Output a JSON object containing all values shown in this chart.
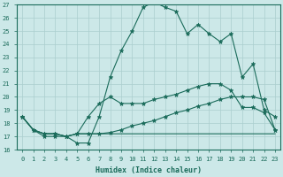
{
  "xlabel": "Humidex (Indice chaleur)",
  "bg_color": "#cce8e8",
  "grid_color": "#aacece",
  "line_color": "#1a6b5a",
  "xlim": [
    -0.5,
    23.5
  ],
  "ylim": [
    16,
    27
  ],
  "xticks": [
    0,
    1,
    2,
    3,
    4,
    5,
    6,
    7,
    8,
    9,
    10,
    11,
    12,
    13,
    14,
    15,
    16,
    17,
    18,
    19,
    20,
    21,
    22,
    23
  ],
  "yticks": [
    16,
    17,
    18,
    19,
    20,
    21,
    22,
    23,
    24,
    25,
    26,
    27
  ],
  "series1_x": [
    0,
    1,
    2,
    3,
    4,
    5,
    6,
    7,
    8,
    9,
    10,
    11,
    12,
    13,
    14,
    15,
    16,
    17,
    18,
    19,
    20,
    21,
    22,
    23
  ],
  "series1_y": [
    18.5,
    17.5,
    17.0,
    17.0,
    17.0,
    16.5,
    16.5,
    18.5,
    21.5,
    23.5,
    25.0,
    26.8,
    27.2,
    26.8,
    26.5,
    24.8,
    25.5,
    24.8,
    24.2,
    24.8,
    21.5,
    22.5,
    19.0,
    18.5
  ],
  "series2_x": [
    0,
    1,
    2,
    3,
    4,
    5,
    6,
    7,
    8,
    9,
    10,
    11,
    12,
    13,
    14,
    15,
    16,
    17,
    18,
    19,
    20,
    21,
    22,
    23
  ],
  "series2_y": [
    18.5,
    17.5,
    17.2,
    17.2,
    17.0,
    17.2,
    18.5,
    19.5,
    20.0,
    19.5,
    19.5,
    19.5,
    19.8,
    20.0,
    20.2,
    20.5,
    20.8,
    21.0,
    21.0,
    20.5,
    19.2,
    19.2,
    18.8,
    17.5
  ],
  "series3_x": [
    0,
    1,
    2,
    3,
    4,
    5,
    6,
    7,
    8,
    9,
    10,
    11,
    12,
    13,
    14,
    15,
    16,
    17,
    18,
    19,
    20,
    21,
    22,
    23
  ],
  "series3_y": [
    18.5,
    17.5,
    17.2,
    17.2,
    17.0,
    17.2,
    17.2,
    17.2,
    17.3,
    17.5,
    17.8,
    18.0,
    18.2,
    18.5,
    18.8,
    19.0,
    19.3,
    19.5,
    19.8,
    20.0,
    20.0,
    20.0,
    19.8,
    17.5
  ],
  "series4_x": [
    0,
    1,
    2,
    3,
    4,
    5,
    6,
    7,
    8,
    9,
    10,
    11,
    12,
    13,
    14,
    15,
    16,
    17,
    18,
    19,
    20,
    21,
    22,
    23
  ],
  "series4_y": [
    18.5,
    17.5,
    17.2,
    17.2,
    17.0,
    17.2,
    17.2,
    17.2,
    17.2,
    17.2,
    17.2,
    17.2,
    17.2,
    17.2,
    17.2,
    17.2,
    17.2,
    17.2,
    17.2,
    17.2,
    17.2,
    17.2,
    17.2,
    17.2
  ]
}
